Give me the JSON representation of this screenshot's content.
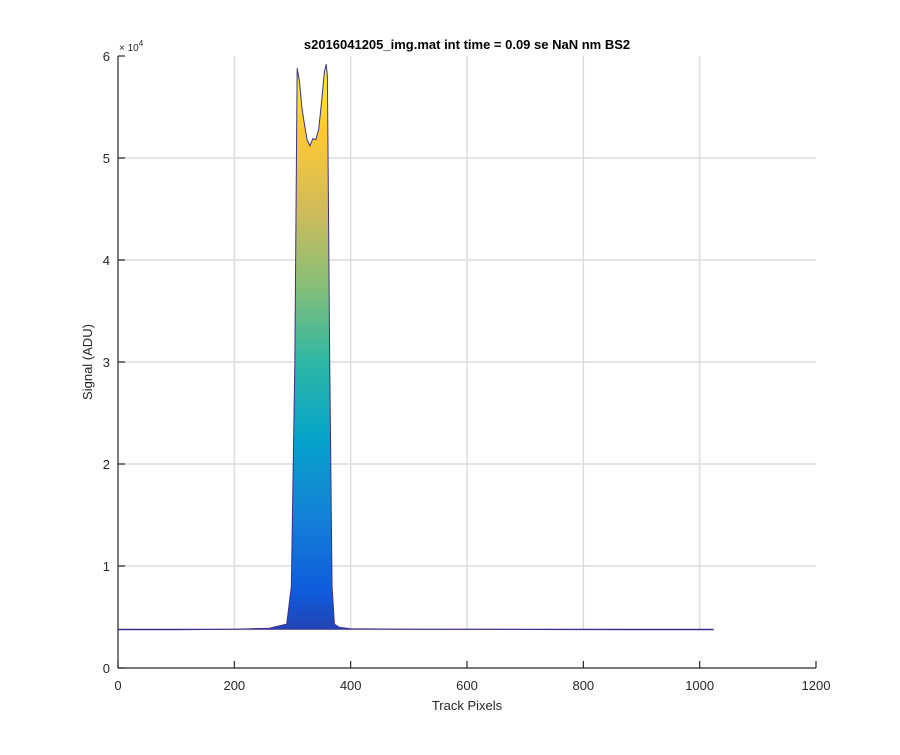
{
  "chart_data": {
    "type": "area",
    "title": "s2016041205_img.mat int time = 0.09 se  NaN nm BS2",
    "xlabel": "Track Pixels",
    "ylabel": "Signal (ADU)",
    "xlim": [
      0,
      1200
    ],
    "ylim": [
      0,
      60000
    ],
    "x_ticks": [
      0,
      200,
      400,
      600,
      800,
      1000,
      1200
    ],
    "x_tick_labels": [
      "0",
      "200",
      "400",
      "600",
      "800",
      "1000",
      "1200"
    ],
    "y_ticks": [
      0,
      10000,
      20000,
      30000,
      40000,
      50000,
      60000
    ],
    "y_tick_labels": [
      "0",
      "1",
      "2",
      "3",
      "4",
      "5",
      "6"
    ],
    "y_exponent_label": "× 10",
    "y_exponent_power": "4",
    "grid": true,
    "colormap": "parula",
    "colormap_colors": [
      "#352a87",
      "#0f5cdd",
      "#1481d6",
      "#06a4ca",
      "#2eb7a4",
      "#87bf77",
      "#d1bb59",
      "#fec832",
      "#f9fb0e"
    ],
    "baseline_level": 3800,
    "baseline_extent": [
      0,
      1024
    ],
    "series": [
      {
        "x": [
          0,
          100,
          200,
          260,
          290,
          298,
          304,
          308,
          312,
          316,
          320,
          325,
          330,
          335,
          340,
          345,
          350,
          355,
          358,
          360,
          364,
          368,
          372,
          380,
          400,
          500,
          700,
          900,
          1024
        ],
        "y": [
          3750,
          3750,
          3800,
          3900,
          4300,
          8000,
          30000,
          58800,
          57500,
          55000,
          53500,
          51800,
          51200,
          51900,
          51800,
          52800,
          55500,
          58500,
          59200,
          58000,
          30000,
          8000,
          4300,
          4000,
          3850,
          3800,
          3780,
          3750,
          3750
        ]
      }
    ]
  }
}
